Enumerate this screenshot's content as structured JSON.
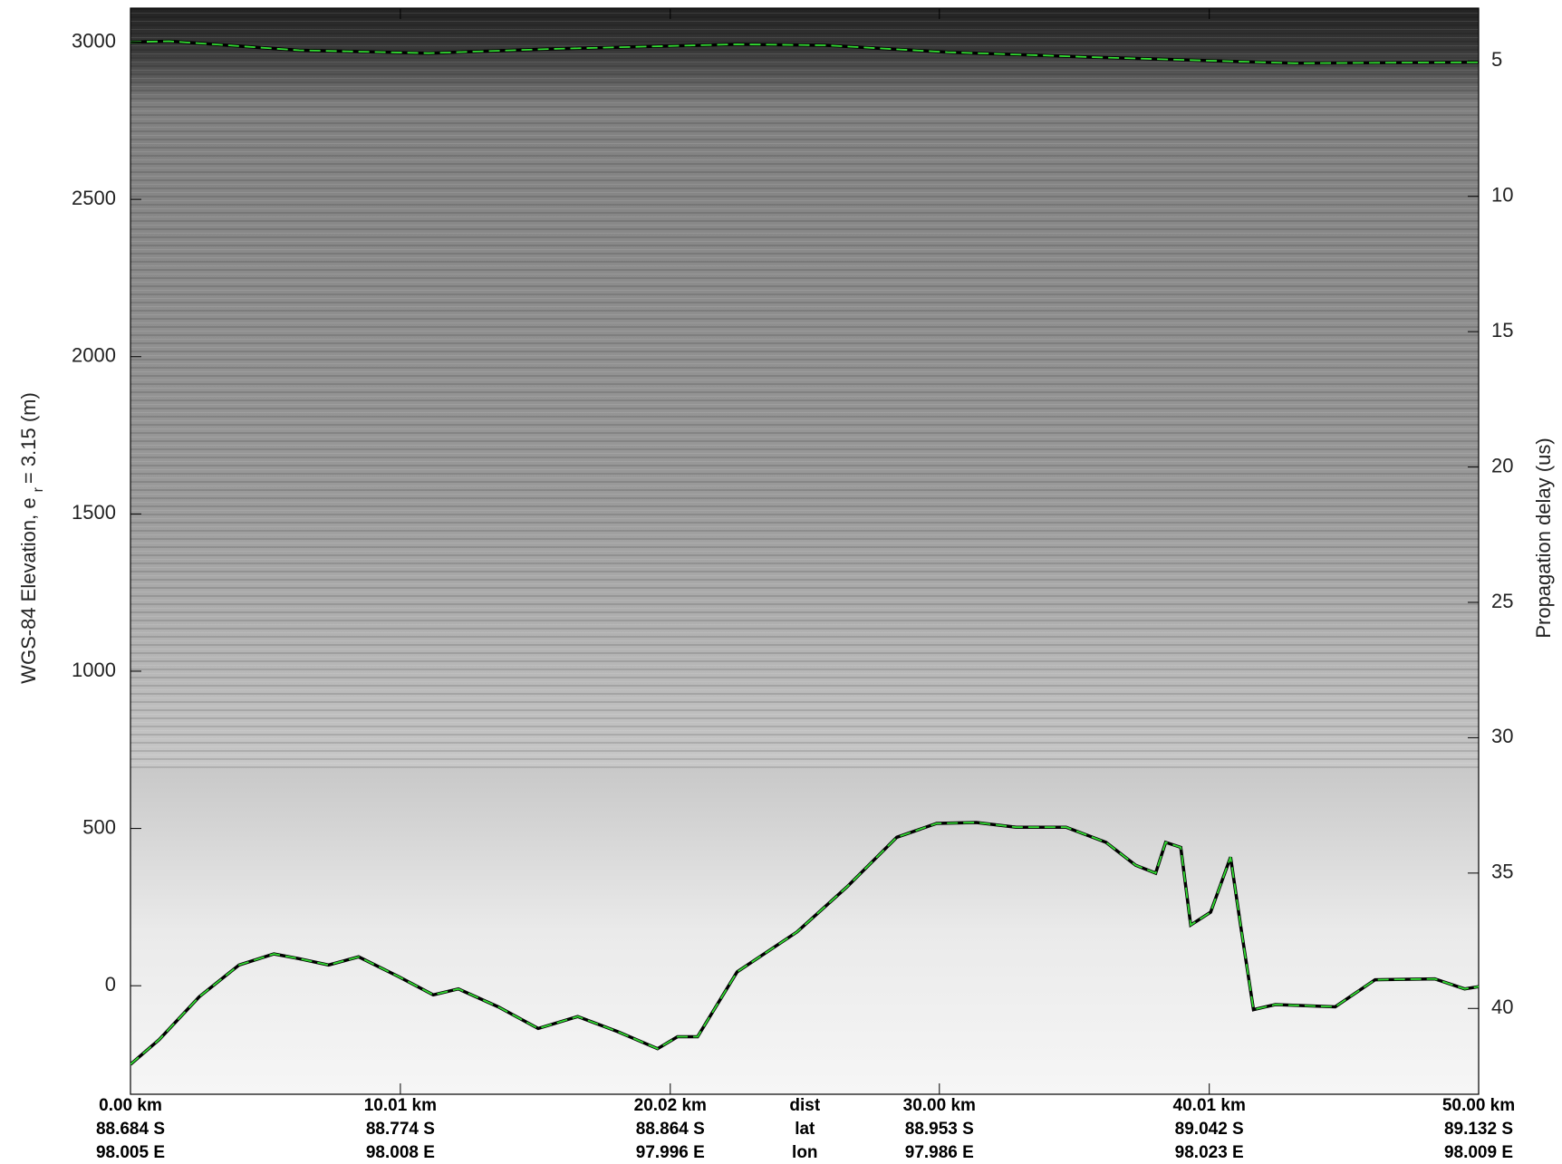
{
  "chart_data": {
    "type": "line",
    "ylabel": {
      "text": "WGS-84 Elevation, e",
      "subscript": "r",
      "rest": "= 3.15 (m)"
    },
    "y2label": "Propagation delay (us)",
    "xlim": [
      0,
      50
    ],
    "xticks": [
      {
        "value": 0,
        "label": "0.00 km"
      },
      {
        "value": 10.01,
        "label": "10.01 km"
      },
      {
        "value": 20.02,
        "label": "20.02 km"
      },
      {
        "value": 30.0,
        "label": "30.00 km"
      },
      {
        "value": 40.01,
        "label": "40.01 km"
      },
      {
        "value": 50.0,
        "label": "50.00 km"
      }
    ],
    "xtick_lat": [
      "88.684 S",
      "88.774 S",
      "88.864 S",
      "88.953 S",
      "89.042 S",
      "89.132 S"
    ],
    "xtick_lon": [
      "98.005 E",
      "98.008 E",
      "97.996 E",
      "97.986 E",
      "98.023 E",
      "98.009 E"
    ],
    "xtick_row_labels": [
      "dist",
      "lat",
      "lon"
    ],
    "ylim": [
      -345,
      3108
    ],
    "yticks": [
      0,
      500,
      1000,
      1500,
      2000,
      2500,
      3000
    ],
    "y2lim": [
      43.17,
      3.05
    ],
    "y2ticks": [
      5,
      10,
      15,
      20,
      25,
      30,
      35,
      40
    ],
    "series": [
      {
        "color": "#33dd33",
        "x": [
          0,
          1.44,
          6.25,
          11.05,
          15.5,
          22.5,
          25.8,
          30.3,
          35.8,
          43.2,
          50
        ],
        "values": [
          3000,
          3003,
          2974,
          2965,
          2978,
          2993,
          2990,
          2968,
          2952,
          2933,
          2936
        ]
      },
      {
        "color": "#33dd33",
        "x": [
          0,
          1.07,
          2.55,
          4.03,
          5.32,
          6.25,
          7.35,
          8.46,
          9.94,
          11.23,
          12.16,
          13.64,
          15.12,
          16.59,
          18.07,
          19.55,
          20.29,
          21.03,
          22.5,
          24.72,
          26.57,
          28.42,
          29.9,
          31.37,
          32.85,
          34.7,
          36.18,
          37.28,
          38.02,
          38.39,
          38.95,
          39.32,
          40.06,
          40.8,
          41.17,
          41.65,
          42.46,
          44.68,
          46.16,
          48.37,
          49.48,
          50
        ],
        "values": [
          -250,
          -171,
          -35,
          66,
          101,
          86,
          66,
          92,
          29,
          -29,
          -10,
          -67,
          -136,
          -98,
          -146,
          -200,
          -162,
          -162,
          44,
          171,
          314,
          472,
          516,
          519,
          504,
          504,
          456,
          383,
          358,
          456,
          440,
          193,
          234,
          409,
          193,
          -76,
          -60,
          -67,
          19,
          22,
          -10,
          -3
        ]
      }
    ]
  }
}
